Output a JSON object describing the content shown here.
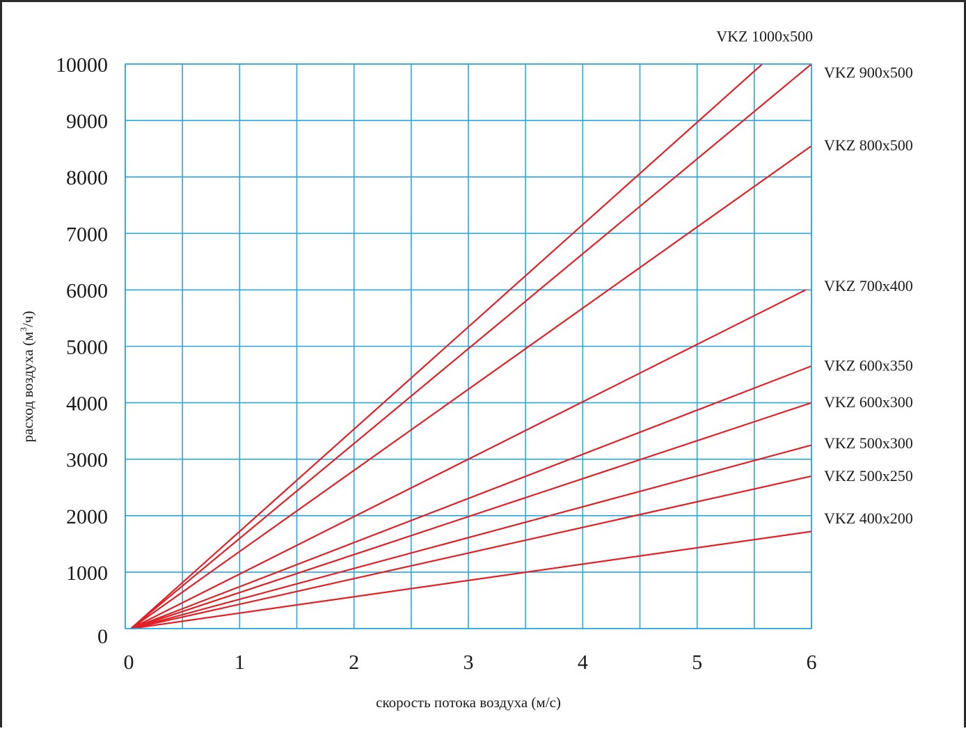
{
  "chart_data": {
    "type": "line",
    "title": "",
    "xlabel": "скорость потока воздуха (м/с)",
    "ylabel_main": "расход воздуха (м",
    "ylabel_sup": "3",
    "ylabel_tail": "/ч)",
    "xlim": [
      0,
      6
    ],
    "ylim": [
      0,
      10000
    ],
    "x_ticks": [
      "0",
      "1",
      "2",
      "3",
      "4",
      "5",
      "6"
    ],
    "y_ticks": [
      "0",
      "1000",
      "2000",
      "3000",
      "4000",
      "5000",
      "6000",
      "7000",
      "8000",
      "9000",
      "10000"
    ],
    "grid": true,
    "grid_x_step": 0.5,
    "grid_y_step": 1000,
    "colors": {
      "grid": "#2aa5dd",
      "series": "#e02025",
      "frame": "#2b2b2b"
    },
    "series": [
      {
        "name": "VKZ 1000x500",
        "x": [
          0.05,
          5.57
        ],
        "y": [
          0,
          10000
        ]
      },
      {
        "name": "VKZ 900x500",
        "x": [
          0.05,
          6.0
        ],
        "y": [
          0,
          10000
        ]
      },
      {
        "name": "VKZ 800x500",
        "x": [
          0.05,
          6.0
        ],
        "y": [
          0,
          8550
        ]
      },
      {
        "name": "VKZ 700x400",
        "x": [
          0.05,
          5.95
        ],
        "y": [
          0,
          6000
        ]
      },
      {
        "name": "VKZ 600x350",
        "x": [
          0.05,
          6.0
        ],
        "y": [
          0,
          4650
        ]
      },
      {
        "name": "VKZ 600x300",
        "x": [
          0.05,
          6.0
        ],
        "y": [
          0,
          4000
        ]
      },
      {
        "name": "VKZ 500x300",
        "x": [
          0.05,
          6.0
        ],
        "y": [
          0,
          3250
        ]
      },
      {
        "name": "VKZ 500x250",
        "x": [
          0.05,
          6.0
        ],
        "y": [
          0,
          2700
        ]
      },
      {
        "name": "VKZ 400x200",
        "x": [
          0.05,
          6.0
        ],
        "y": [
          0,
          1720
        ]
      }
    ],
    "series_label_y": [
      10500,
      9860,
      8570,
      6080,
      4670,
      4020,
      3290,
      2710,
      1960
    ]
  }
}
